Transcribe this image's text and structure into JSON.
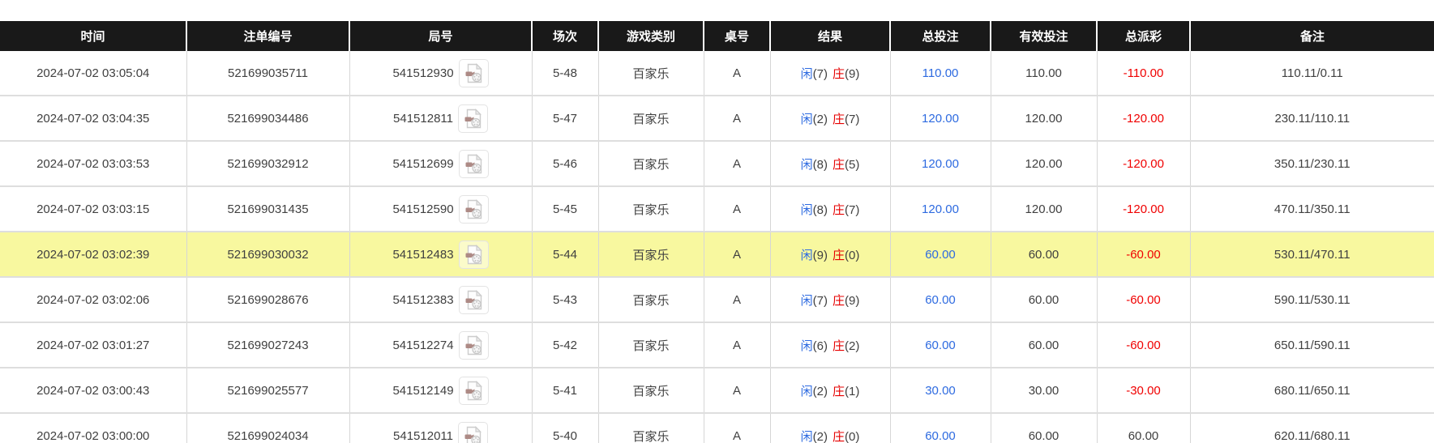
{
  "table": {
    "columns": [
      {
        "key": "time",
        "label": "时间"
      },
      {
        "key": "bet_number",
        "label": "注单编号"
      },
      {
        "key": "round",
        "label": "局号"
      },
      {
        "key": "session",
        "label": "场次"
      },
      {
        "key": "game_type",
        "label": "游戏类别"
      },
      {
        "key": "table_no",
        "label": "桌号"
      },
      {
        "key": "result",
        "label": "结果"
      },
      {
        "key": "total_bet",
        "label": "总投注"
      },
      {
        "key": "valid_bet",
        "label": "有效投注"
      },
      {
        "key": "payout",
        "label": "总派彩"
      },
      {
        "key": "remark",
        "label": "备注"
      }
    ],
    "result_labels": {
      "player": "闲",
      "banker": "庄"
    },
    "rows": [
      {
        "time": "2024-07-02 03:05:04",
        "bet_number": "521699035711",
        "round": "541512930",
        "session": "5-48",
        "game_type": "百家乐",
        "table_no": "A",
        "result": {
          "player_score": "(7)",
          "banker_score": "(9)"
        },
        "total_bet": "110.00",
        "valid_bet": "110.00",
        "payout": "-110.00",
        "remark": "110.11/0.11",
        "highlighted": false
      },
      {
        "time": "2024-07-02 03:04:35",
        "bet_number": "521699034486",
        "round": "541512811",
        "session": "5-47",
        "game_type": "百家乐",
        "table_no": "A",
        "result": {
          "player_score": "(2)",
          "banker_score": "(7)"
        },
        "total_bet": "120.00",
        "valid_bet": "120.00",
        "payout": "-120.00",
        "remark": "230.11/110.11",
        "highlighted": false
      },
      {
        "time": "2024-07-02 03:03:53",
        "bet_number": "521699032912",
        "round": "541512699",
        "session": "5-46",
        "game_type": "百家乐",
        "table_no": "A",
        "result": {
          "player_score": "(8)",
          "banker_score": "(5)"
        },
        "total_bet": "120.00",
        "valid_bet": "120.00",
        "payout": "-120.00",
        "remark": "350.11/230.11",
        "highlighted": false
      },
      {
        "time": "2024-07-02 03:03:15",
        "bet_number": "521699031435",
        "round": "541512590",
        "session": "5-45",
        "game_type": "百家乐",
        "table_no": "A",
        "result": {
          "player_score": "(8)",
          "banker_score": "(7)"
        },
        "total_bet": "120.00",
        "valid_bet": "120.00",
        "payout": "-120.00",
        "remark": "470.11/350.11",
        "highlighted": false
      },
      {
        "time": "2024-07-02 03:02:39",
        "bet_number": "521699030032",
        "round": "541512483",
        "session": "5-44",
        "game_type": "百家乐",
        "table_no": "A",
        "result": {
          "player_score": "(9)",
          "banker_score": "(0)"
        },
        "total_bet": "60.00",
        "valid_bet": "60.00",
        "payout": "-60.00",
        "remark": "530.11/470.11",
        "highlighted": true
      },
      {
        "time": "2024-07-02 03:02:06",
        "bet_number": "521699028676",
        "round": "541512383",
        "session": "5-43",
        "game_type": "百家乐",
        "table_no": "A",
        "result": {
          "player_score": "(7)",
          "banker_score": "(9)"
        },
        "total_bet": "60.00",
        "valid_bet": "60.00",
        "payout": "-60.00",
        "remark": "590.11/530.11",
        "highlighted": false
      },
      {
        "time": "2024-07-02 03:01:27",
        "bet_number": "521699027243",
        "round": "541512274",
        "session": "5-42",
        "game_type": "百家乐",
        "table_no": "A",
        "result": {
          "player_score": "(6)",
          "banker_score": "(2)"
        },
        "total_bet": "60.00",
        "valid_bet": "60.00",
        "payout": "-60.00",
        "remark": "650.11/590.11",
        "highlighted": false
      },
      {
        "time": "2024-07-02 03:00:43",
        "bet_number": "521699025577",
        "round": "541512149",
        "session": "5-41",
        "game_type": "百家乐",
        "table_no": "A",
        "result": {
          "player_score": "(2)",
          "banker_score": "(1)"
        },
        "total_bet": "30.00",
        "valid_bet": "30.00",
        "payout": "-30.00",
        "remark": "680.11/650.11",
        "highlighted": false
      },
      {
        "time": "2024-07-02 03:00:00",
        "bet_number": "521699024034",
        "round": "541512011",
        "session": "5-40",
        "game_type": "百家乐",
        "table_no": "A",
        "result": {
          "player_score": "(2)",
          "banker_score": "(0)"
        },
        "total_bet": "60.00",
        "valid_bet": "60.00",
        "payout": "60.00",
        "remark": "620.11/680.11",
        "highlighted": false
      }
    ],
    "icons": {
      "round_cell_icon": "video-replay-file-icon"
    },
    "colors": {
      "header_bg": "#191919",
      "header_text": "#ffffff",
      "body_text": "#404040",
      "bet_blue": "#2d6ae0",
      "loss_red": "#f00000",
      "player_blue": "#2d6ae0",
      "banker_red": "#e60000",
      "highlight_yellow": "#f8f89f"
    }
  }
}
